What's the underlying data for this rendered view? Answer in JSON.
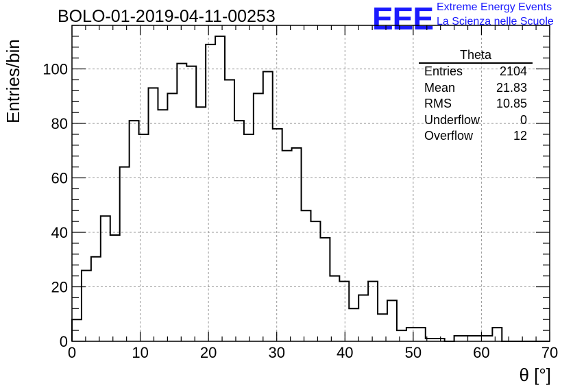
{
  "chart_data": {
    "type": "bar",
    "title": "BOLO-01-2019-04-11-00253",
    "xlabel": "θ [°]",
    "ylabel": "Entries/bin",
    "xlim": [
      0,
      70
    ],
    "ylim": [
      0,
      116
    ],
    "grid": true,
    "bin_width": 1.4,
    "values": [
      8,
      26,
      31,
      46,
      39,
      64,
      81,
      76,
      93,
      85,
      91,
      102,
      101,
      86,
      109,
      112,
      96,
      81,
      76,
      91,
      99,
      78,
      70,
      71,
      48,
      44,
      38,
      24,
      22,
      12,
      17,
      22,
      10,
      15,
      4,
      5,
      5,
      1,
      1,
      0,
      2,
      2,
      2,
      2,
      5,
      0,
      0,
      0,
      0,
      0
    ],
    "x_ticks": [
      "0",
      "10",
      "20",
      "30",
      "40",
      "50",
      "60",
      "70"
    ],
    "y_ticks": [
      "0",
      "20",
      "40",
      "60",
      "80",
      "100"
    ]
  },
  "logo": {
    "mark": "EEE",
    "line1": "Extreme Energy Events",
    "line2": "La Scienza nelle Scuole"
  },
  "stats": {
    "title": "Theta",
    "rows": [
      {
        "label": "Entries",
        "value": "2104"
      },
      {
        "label": "Mean",
        "value": "21.83"
      },
      {
        "label": "RMS",
        "value": "10.85"
      },
      {
        "label": "Underflow",
        "value": "0"
      },
      {
        "label": "Overflow",
        "value": "12"
      }
    ]
  }
}
